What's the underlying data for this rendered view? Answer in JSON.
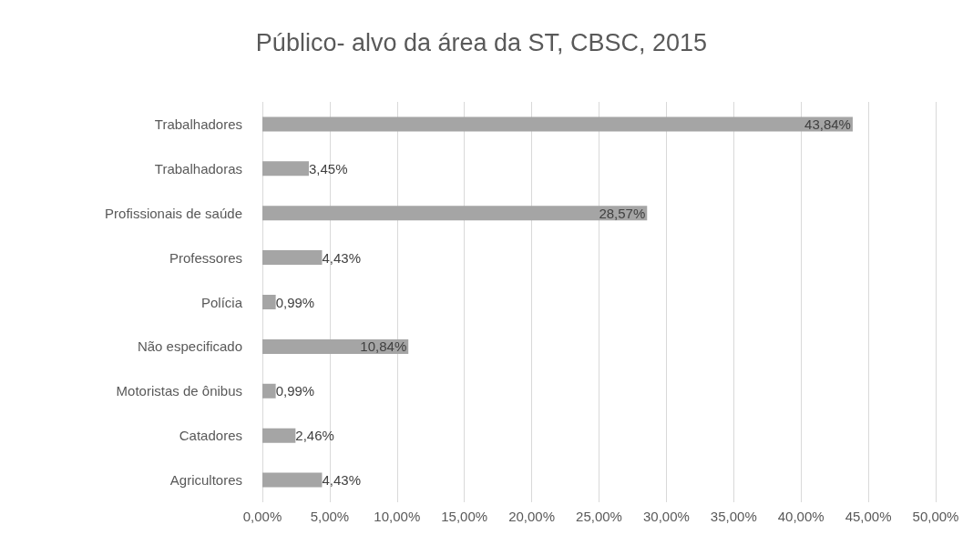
{
  "chart_data": {
    "type": "bar",
    "orientation": "horizontal",
    "title": "Público- alvo da área da ST, CBSC, 2015",
    "categories": [
      "Trabalhadores",
      "Trabalhadoras",
      "Profissionais de saúde",
      "Professores",
      "Polícia",
      "Não especificado",
      "Motoristas de ônibus",
      "Catadores",
      "Agricultores"
    ],
    "values": [
      43.84,
      3.45,
      28.57,
      4.43,
      0.99,
      10.84,
      0.99,
      2.46,
      4.43
    ],
    "value_labels": [
      "43,84%",
      "3,45%",
      "28,57%",
      "4,43%",
      "0,99%",
      "10,84%",
      "0,99%",
      "2,46%",
      "4,43%"
    ],
    "color": "#a5a5a5",
    "xlim": [
      0,
      50
    ],
    "xticks": [
      {
        "value": 0,
        "label": "0,00%"
      },
      {
        "value": 5,
        "label": "5,00%"
      },
      {
        "value": 10,
        "label": "10,00%"
      },
      {
        "value": 15,
        "label": "15,00%"
      },
      {
        "value": 20,
        "label": "20,00%"
      },
      {
        "value": 25,
        "label": "25,00%"
      },
      {
        "value": 30,
        "label": "30,00%"
      },
      {
        "value": 35,
        "label": "35,00%"
      },
      {
        "value": 40,
        "label": "40,00%"
      },
      {
        "value": 45,
        "label": "45,00%"
      },
      {
        "value": 50,
        "label": "50,00%"
      }
    ],
    "grid": "x"
  }
}
